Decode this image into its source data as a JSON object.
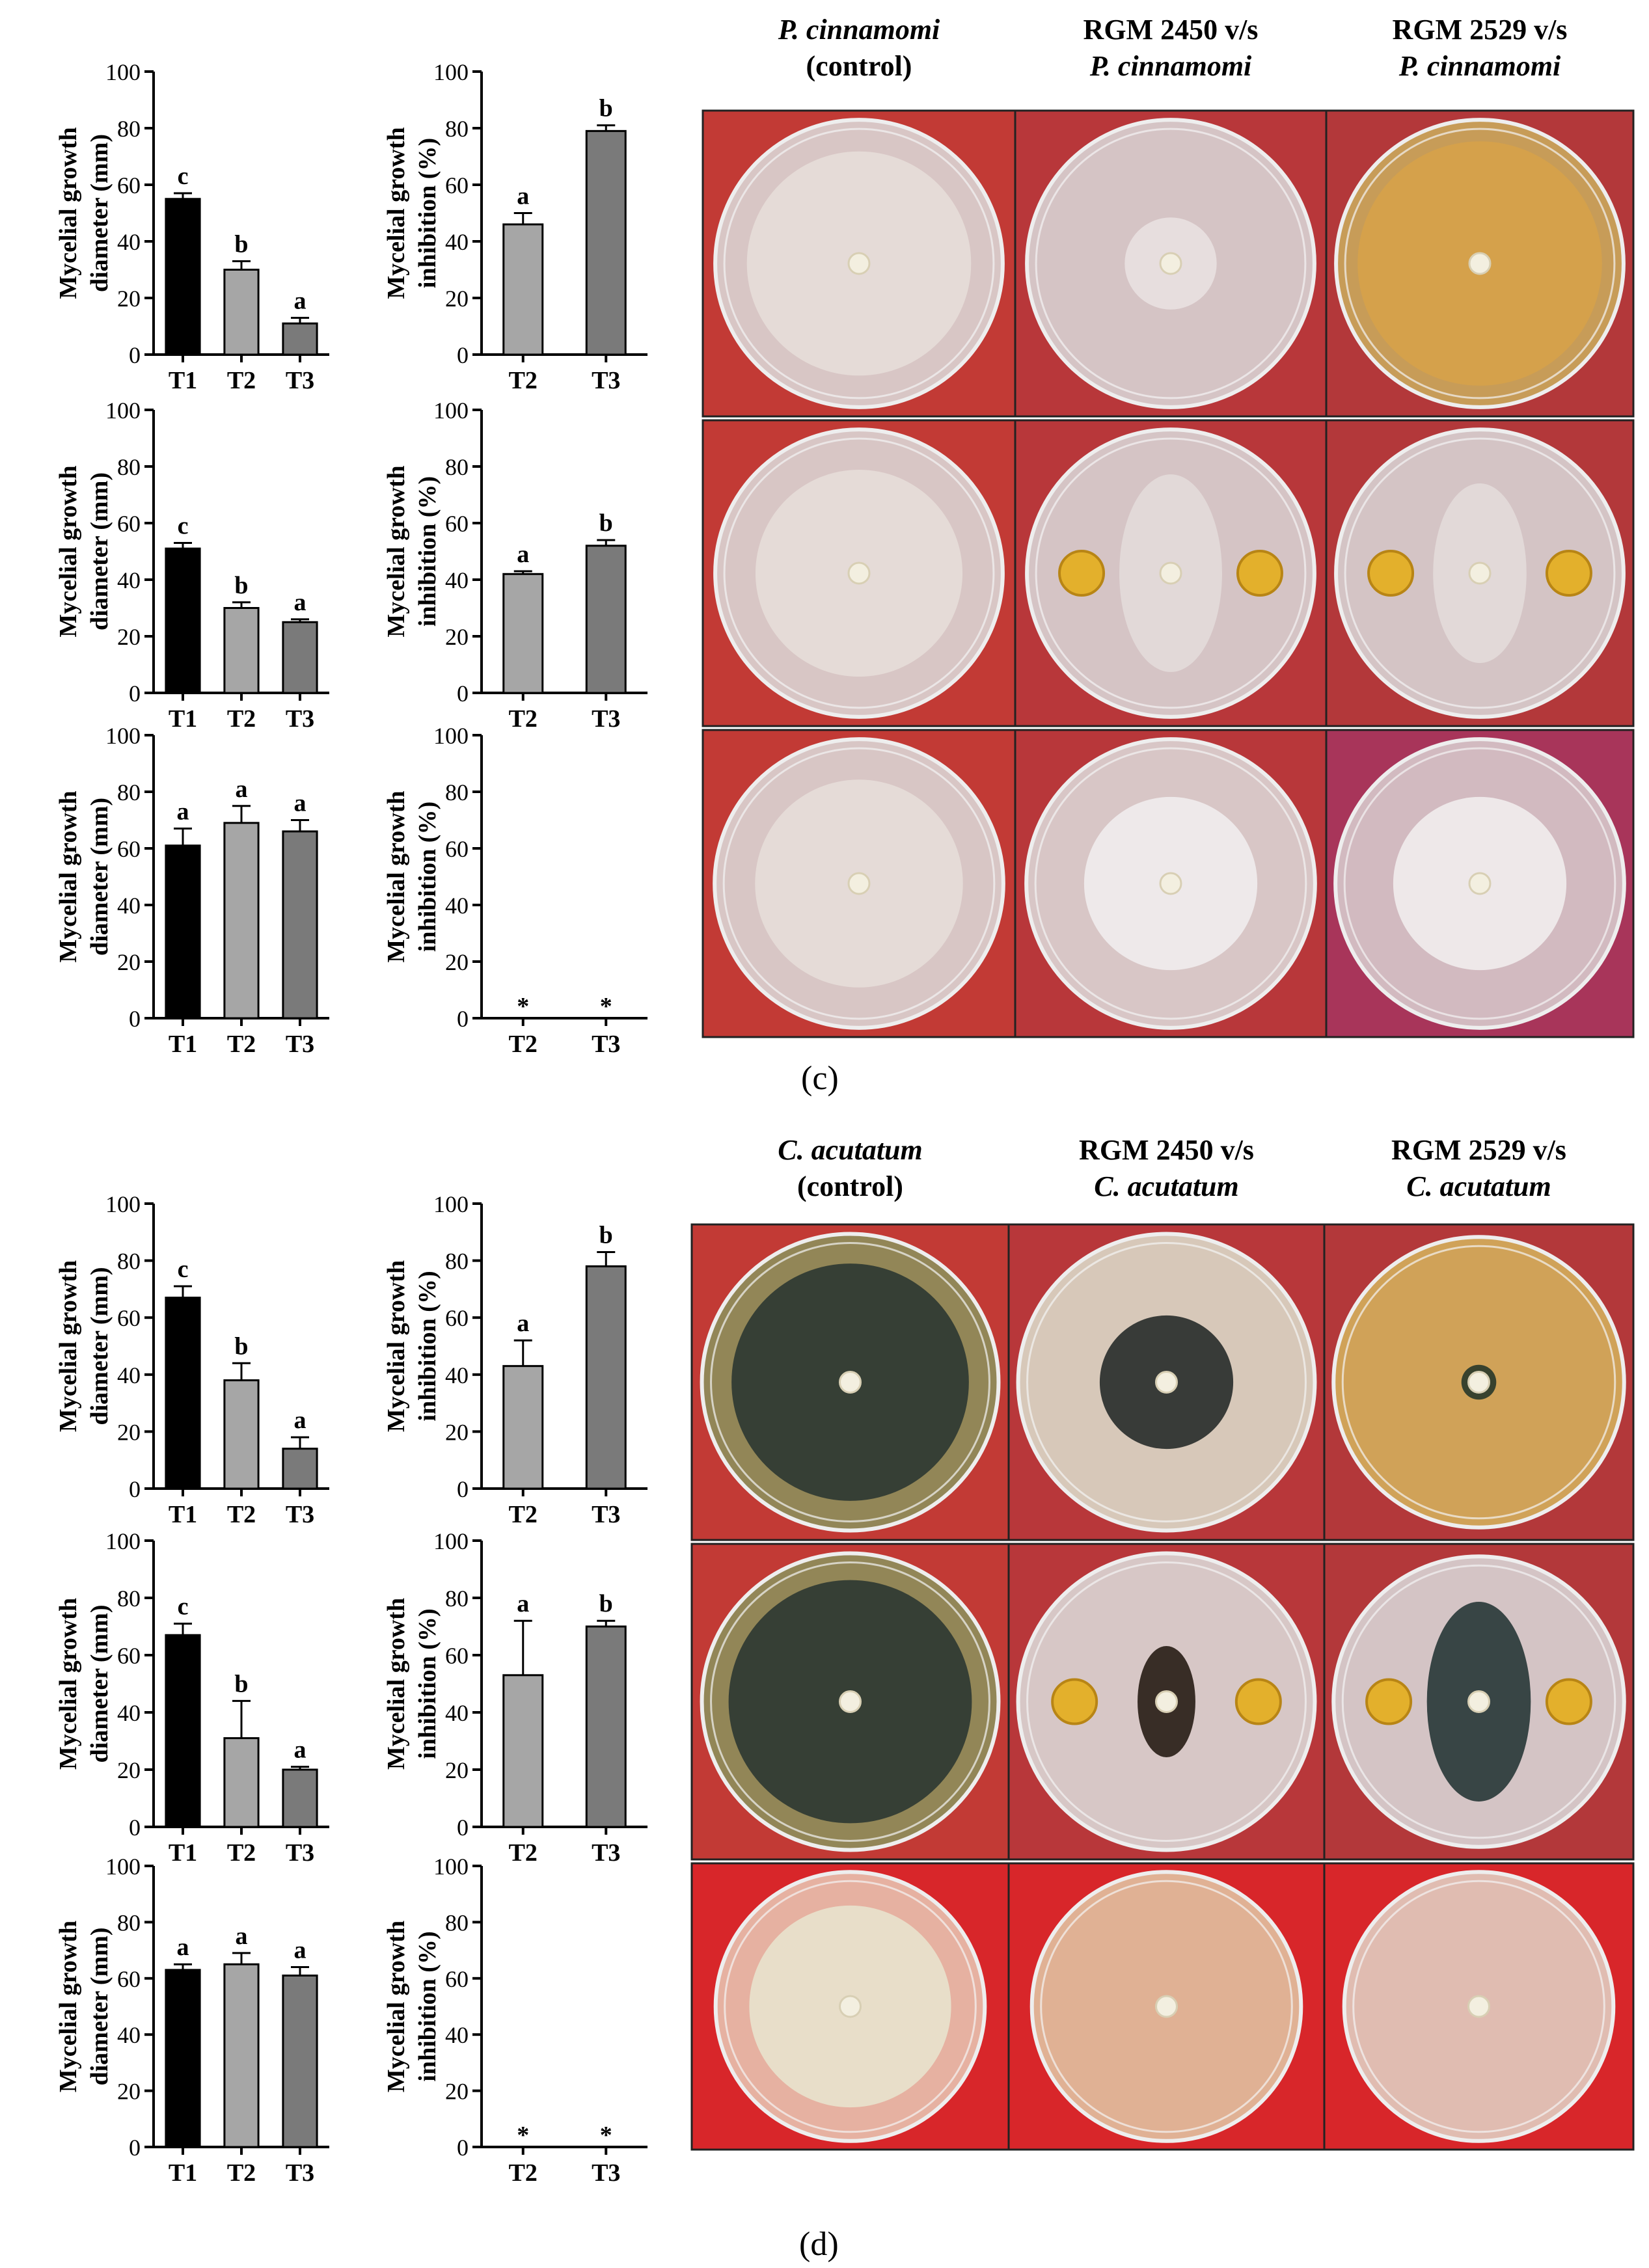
{
  "figure": {
    "panels": [
      {
        "label": "(c)",
        "column_headers": [
          {
            "line1": "P. cinnamomi",
            "line1_italic": true,
            "line2": "(control)",
            "line2_italic": false
          },
          {
            "line1": "RGM 2450 v/s",
            "line1_italic": false,
            "line2": "P. cinnamomi",
            "line2_italic": true
          },
          {
            "line1": "RGM 2529 v/s",
            "line1_italic": false,
            "line2": "P. cinnamomi",
            "line2_italic": true
          }
        ],
        "photo_rows": [
          [
            {
              "colony": "#e6dcd8",
              "agar": "#d9cdcd",
              "bg": "#c23a35",
              "dual": false,
              "size": 0.78
            },
            {
              "colony": "#e8e0df",
              "agar": "#d6cbcc",
              "bg": "#b8373a",
              "dual": false,
              "size": 0.32
            },
            {
              "colony": "#d6a24a",
              "agar": "#c8a15a",
              "bg": "#b3383a",
              "dual": false,
              "size": 0.85
            }
          ],
          [
            {
              "colony": "#e6dcd8",
              "agar": "#d9cdcd",
              "bg": "#c23a35",
              "dual": false,
              "size": 0.72
            },
            {
              "colony": "#e3dad9",
              "agar": "#d6cbcc",
              "bg": "#b8373a",
              "dual": true,
              "size": 0.55
            },
            {
              "colony": "#e3dad9",
              "agar": "#d6cbcc",
              "bg": "#b3383a",
              "dual": true,
              "size": 0.5
            }
          ],
          [
            {
              "colony": "#e6dcd8",
              "agar": "#d9cdcd",
              "bg": "#c23a35",
              "dual": false,
              "size": 0.72
            },
            {
              "colony": "#f0eced",
              "agar": "#d9cdcd",
              "bg": "#b8373a",
              "dual": false,
              "size": 0.6
            },
            {
              "colony": "#f0eced",
              "agar": "#d4c2c6",
              "bg": "#a8355a",
              "dual": false,
              "size": 0.6
            }
          ]
        ]
      },
      {
        "label": "(d)",
        "column_headers": [
          {
            "line1": "C. acutatum",
            "line1_italic": true,
            "line2": "(control)",
            "line2_italic": false
          },
          {
            "line1": "RGM 2450 v/s",
            "line1_italic": false,
            "line2": "C. acutatum",
            "line2_italic": true
          },
          {
            "line1": "RGM 2529 v/s",
            "line1_italic": false,
            "line2": "C. acutatum",
            "line2_italic": true
          }
        ],
        "photo_rows": [
          [
            {
              "colony": "#2f3a32",
              "agar": "#8f8a5a",
              "bg": "#c23a35",
              "dual": false,
              "size": 0.8
            },
            {
              "colony": "#2a2f2c",
              "agar": "#d8d0c0",
              "bg": "#b8373a",
              "dual": false,
              "size": 0.45
            },
            {
              "colony": "#2a3a2a",
              "agar": "#d2a85a",
              "bg": "#b3383a",
              "dual": false,
              "size": 0.12
            }
          ],
          [
            {
              "colony": "#2f3a32",
              "agar": "#8f8a5a",
              "bg": "#c23a35",
              "dual": false,
              "size": 0.82
            },
            {
              "colony": "#2a2018",
              "agar": "#d8cfcd",
              "bg": "#b8373a",
              "dual": true,
              "size": 0.3
            },
            {
              "colony": "#2a3a3a",
              "agar": "#d6cbcc",
              "bg": "#b3383a",
              "dual": true,
              "size": 0.55
            }
          ],
          [
            {
              "colony": "#e8e2cc",
              "agar": "#e7b8a8",
              "bg": "#d8262a",
              "dual": false,
              "size": 0.75
            },
            {
              "colony": "#c6a27a",
              "agar": "#e0b89a",
              "bg": "#d8262a",
              "dual": false,
              "size": 0.06
            },
            {
              "colony": "#c6a27a",
              "agar": "#e0c4b8",
              "bg": "#d8262a",
              "dual": false,
              "size": 0.06
            }
          ]
        ]
      }
    ]
  },
  "chart_data": [
    {
      "type": "bar",
      "panel": "(c)",
      "row": 1,
      "metric": "diameter",
      "ylabel": [
        "Mycelial growth",
        "diameter (mm)"
      ],
      "ylim": [
        0,
        100
      ],
      "yticks": [
        0,
        20,
        40,
        60,
        80,
        100
      ],
      "categories": [
        "T1",
        "T2",
        "T3"
      ],
      "values": [
        55,
        30,
        11
      ],
      "errors": [
        2,
        3,
        2
      ],
      "letters": [
        "c",
        "b",
        "a"
      ],
      "colors": [
        "#000000",
        "#a6a6a6",
        "#7a7a7a"
      ]
    },
    {
      "type": "bar",
      "panel": "(c)",
      "row": 1,
      "metric": "inhibition",
      "ylabel": [
        "Mycelial growth",
        "inhibition (%)"
      ],
      "ylim": [
        0,
        100
      ],
      "yticks": [
        0,
        20,
        40,
        60,
        80,
        100
      ],
      "categories": [
        "T2",
        "T3"
      ],
      "values": [
        46,
        79
      ],
      "errors": [
        4,
        2
      ],
      "letters": [
        "a",
        "b"
      ],
      "colors": [
        "#a6a6a6",
        "#7a7a7a"
      ]
    },
    {
      "type": "bar",
      "panel": "(c)",
      "row": 2,
      "metric": "diameter",
      "ylabel": [
        "Mycelial growth",
        "diameter (mm)"
      ],
      "ylim": [
        0,
        100
      ],
      "yticks": [
        0,
        20,
        40,
        60,
        80,
        100
      ],
      "categories": [
        "T1",
        "T2",
        "T3"
      ],
      "values": [
        51,
        30,
        25
      ],
      "errors": [
        2,
        2,
        1
      ],
      "letters": [
        "c",
        "b",
        "a"
      ],
      "colors": [
        "#000000",
        "#a6a6a6",
        "#7a7a7a"
      ]
    },
    {
      "type": "bar",
      "panel": "(c)",
      "row": 2,
      "metric": "inhibition",
      "ylabel": [
        "Mycelial growth",
        "inhibition (%)"
      ],
      "ylim": [
        0,
        100
      ],
      "yticks": [
        0,
        20,
        40,
        60,
        80,
        100
      ],
      "categories": [
        "T2",
        "T3"
      ],
      "values": [
        42,
        52
      ],
      "errors": [
        1,
        2
      ],
      "letters": [
        "a",
        "b"
      ],
      "colors": [
        "#a6a6a6",
        "#7a7a7a"
      ]
    },
    {
      "type": "bar",
      "panel": "(c)",
      "row": 3,
      "metric": "diameter",
      "ylabel": [
        "Mycelial growth",
        "diameter (mm)"
      ],
      "ylim": [
        0,
        100
      ],
      "yticks": [
        0,
        20,
        40,
        60,
        80,
        100
      ],
      "categories": [
        "T1",
        "T2",
        "T3"
      ],
      "values": [
        61,
        69,
        66
      ],
      "errors": [
        6,
        6,
        4
      ],
      "letters": [
        "a",
        "a",
        "a"
      ],
      "colors": [
        "#000000",
        "#a6a6a6",
        "#7a7a7a"
      ]
    },
    {
      "type": "bar",
      "panel": "(c)",
      "row": 3,
      "metric": "inhibition",
      "ylabel": [
        "Mycelial growth",
        "inhibition (%)"
      ],
      "ylim": [
        0,
        100
      ],
      "yticks": [
        0,
        20,
        40,
        60,
        80,
        100
      ],
      "categories": [
        "T2",
        "T3"
      ],
      "values": [
        0,
        0
      ],
      "errors": [
        0,
        0
      ],
      "letters": [
        "*",
        "*"
      ],
      "colors": [
        "#a6a6a6",
        "#7a7a7a"
      ]
    },
    {
      "type": "bar",
      "panel": "(d)",
      "row": 1,
      "metric": "diameter",
      "ylabel": [
        "Mycelial growth",
        "diameter (mm)"
      ],
      "ylim": [
        0,
        100
      ],
      "yticks": [
        0,
        20,
        40,
        60,
        80,
        100
      ],
      "categories": [
        "T1",
        "T2",
        "T3"
      ],
      "values": [
        67,
        38,
        14
      ],
      "errors": [
        4,
        6,
        4
      ],
      "letters": [
        "c",
        "b",
        "a"
      ],
      "colors": [
        "#000000",
        "#a6a6a6",
        "#7a7a7a"
      ]
    },
    {
      "type": "bar",
      "panel": "(d)",
      "row": 1,
      "metric": "inhibition",
      "ylabel": [
        "Mycelial growth",
        "inhibition (%)"
      ],
      "ylim": [
        0,
        100
      ],
      "yticks": [
        0,
        20,
        40,
        60,
        80,
        100
      ],
      "categories": [
        "T2",
        "T3"
      ],
      "values": [
        43,
        78
      ],
      "errors": [
        9,
        5
      ],
      "letters": [
        "a",
        "b"
      ],
      "colors": [
        "#a6a6a6",
        "#7a7a7a"
      ]
    },
    {
      "type": "bar",
      "panel": "(d)",
      "row": 2,
      "metric": "diameter",
      "ylabel": [
        "Mycelial growth",
        "diameter (mm)"
      ],
      "ylim": [
        0,
        100
      ],
      "yticks": [
        0,
        20,
        40,
        60,
        80,
        100
      ],
      "categories": [
        "T1",
        "T2",
        "T3"
      ],
      "values": [
        67,
        31,
        20
      ],
      "errors": [
        4,
        13,
        1
      ],
      "letters": [
        "c",
        "b",
        "a"
      ],
      "colors": [
        "#000000",
        "#a6a6a6",
        "#7a7a7a"
      ]
    },
    {
      "type": "bar",
      "panel": "(d)",
      "row": 2,
      "metric": "inhibition",
      "ylabel": [
        "Mycelial growth",
        "inhibition (%)"
      ],
      "ylim": [
        0,
        100
      ],
      "yticks": [
        0,
        20,
        40,
        60,
        80,
        100
      ],
      "categories": [
        "T2",
        "T3"
      ],
      "values": [
        53,
        70
      ],
      "errors": [
        19,
        2
      ],
      "letters": [
        "a",
        "b"
      ],
      "colors": [
        "#a6a6a6",
        "#7a7a7a"
      ]
    },
    {
      "type": "bar",
      "panel": "(d)",
      "row": 3,
      "metric": "diameter",
      "ylabel": [
        "Mycelial growth",
        "diameter (mm)"
      ],
      "ylim": [
        0,
        100
      ],
      "yticks": [
        0,
        20,
        40,
        60,
        80,
        100
      ],
      "categories": [
        "T1",
        "T2",
        "T3"
      ],
      "values": [
        63,
        65,
        61
      ],
      "errors": [
        2,
        4,
        3
      ],
      "letters": [
        "a",
        "a",
        "a"
      ],
      "colors": [
        "#000000",
        "#a6a6a6",
        "#7a7a7a"
      ]
    },
    {
      "type": "bar",
      "panel": "(d)",
      "row": 3,
      "metric": "inhibition",
      "ylabel": [
        "Mycelial growth",
        "inhibition (%)"
      ],
      "ylim": [
        0,
        100
      ],
      "yticks": [
        0,
        20,
        40,
        60,
        80,
        100
      ],
      "categories": [
        "T2",
        "T3"
      ],
      "values": [
        0,
        0
      ],
      "errors": [
        0,
        0
      ],
      "letters": [
        "*",
        "*"
      ],
      "colors": [
        "#a6a6a6",
        "#7a7a7a"
      ]
    }
  ]
}
